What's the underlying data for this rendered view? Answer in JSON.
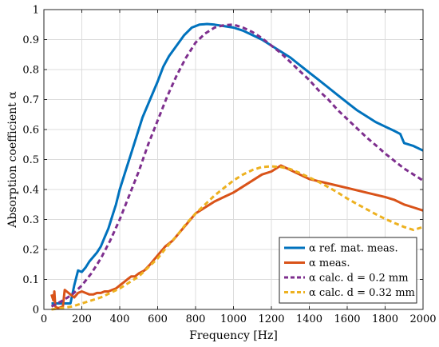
{
  "chart_data": {
    "type": "line",
    "xlabel": "Frequency [Hz]",
    "ylabel": "Absorption coefficient α",
    "xlim": [
      0,
      2000
    ],
    "ylim": [
      0,
      1
    ],
    "xticks": [
      0,
      200,
      400,
      600,
      800,
      1000,
      1200,
      1400,
      1600,
      1800,
      2000
    ],
    "yticks": [
      0,
      0.1,
      0.2,
      0.3,
      0.4,
      0.5,
      0.6,
      0.7,
      0.8,
      0.9,
      1
    ],
    "ytick_labels": [
      "0",
      "0.1",
      "0.2",
      "0.3",
      "0.4",
      "0.5",
      "0.6",
      "0.7",
      "0.8",
      "0.9",
      "1"
    ],
    "grid": true,
    "legend_position": "bottom-right",
    "series": [
      {
        "name": "α ref. mat. meas.",
        "color": "#0072BD",
        "style": "solid",
        "x": [
          40,
          60,
          80,
          100,
          120,
          140,
          160,
          180,
          200,
          220,
          240,
          260,
          280,
          300,
          320,
          340,
          360,
          380,
          400,
          430,
          460,
          490,
          520,
          560,
          600,
          630,
          660,
          700,
          740,
          780,
          820,
          860,
          900,
          950,
          1000,
          1050,
          1100,
          1150,
          1200,
          1250,
          1300,
          1350,
          1400,
          1450,
          1500,
          1550,
          1600,
          1650,
          1700,
          1750,
          1800,
          1850,
          1880,
          1900,
          1950,
          2000
        ],
        "y": [
          0.02,
          0.02,
          0.02,
          0.02,
          0.02,
          0.02,
          0.08,
          0.13,
          0.125,
          0.14,
          0.16,
          0.175,
          0.19,
          0.21,
          0.24,
          0.27,
          0.31,
          0.35,
          0.4,
          0.46,
          0.52,
          0.58,
          0.64,
          0.7,
          0.76,
          0.81,
          0.845,
          0.88,
          0.915,
          0.94,
          0.95,
          0.952,
          0.95,
          0.945,
          0.94,
          0.93,
          0.915,
          0.9,
          0.88,
          0.86,
          0.84,
          0.815,
          0.79,
          0.765,
          0.74,
          0.715,
          0.69,
          0.665,
          0.645,
          0.625,
          0.61,
          0.595,
          0.585,
          0.555,
          0.545,
          0.53
        ]
      },
      {
        "name": "α meas.",
        "color": "#D95319",
        "style": "solid",
        "x": [
          40,
          50,
          55,
          60,
          70,
          80,
          100,
          110,
          120,
          140,
          160,
          180,
          200,
          220,
          240,
          260,
          280,
          300,
          320,
          340,
          360,
          380,
          400,
          420,
          440,
          460,
          480,
          500,
          530,
          560,
          600,
          640,
          680,
          720,
          760,
          800,
          850,
          900,
          950,
          1000,
          1050,
          1100,
          1150,
          1200,
          1250,
          1300,
          1350,
          1400,
          1500,
          1600,
          1700,
          1800,
          1850,
          1900,
          1950,
          2000
        ],
        "y": [
          0.05,
          0.03,
          0.06,
          0.01,
          0.005,
          0.005,
          0.01,
          0.065,
          0.06,
          0.05,
          0.04,
          0.055,
          0.06,
          0.055,
          0.05,
          0.05,
          0.055,
          0.055,
          0.06,
          0.06,
          0.065,
          0.07,
          0.08,
          0.09,
          0.1,
          0.11,
          0.11,
          0.12,
          0.13,
          0.15,
          0.18,
          0.21,
          0.23,
          0.26,
          0.29,
          0.32,
          0.34,
          0.36,
          0.375,
          0.39,
          0.41,
          0.43,
          0.45,
          0.46,
          0.48,
          0.465,
          0.45,
          0.435,
          0.42,
          0.405,
          0.39,
          0.375,
          0.365,
          0.35,
          0.34,
          0.33
        ]
      },
      {
        "name": "α calc. d = 0.2 mm",
        "color": "#7E2F8E",
        "style": "dashed",
        "x": [
          40,
          100,
          150,
          200,
          250,
          300,
          350,
          400,
          450,
          500,
          550,
          600,
          650,
          700,
          750,
          800,
          850,
          900,
          950,
          1000,
          1050,
          1100,
          1150,
          1200,
          1250,
          1300,
          1350,
          1400,
          1450,
          1500,
          1550,
          1600,
          1650,
          1700,
          1750,
          1800,
          1850,
          1900,
          1950,
          2000
        ],
        "y": [
          0.01,
          0.03,
          0.05,
          0.08,
          0.12,
          0.17,
          0.23,
          0.3,
          0.38,
          0.46,
          0.55,
          0.63,
          0.71,
          0.78,
          0.84,
          0.89,
          0.92,
          0.94,
          0.948,
          0.95,
          0.94,
          0.925,
          0.905,
          0.88,
          0.855,
          0.825,
          0.795,
          0.765,
          0.73,
          0.7,
          0.665,
          0.635,
          0.605,
          0.575,
          0.548,
          0.52,
          0.495,
          0.47,
          0.45,
          0.43
        ]
      },
      {
        "name": "α calc. d = 0.32 mm",
        "color": "#EDB120",
        "style": "dashed",
        "x": [
          40,
          100,
          150,
          200,
          250,
          300,
          350,
          400,
          450,
          500,
          550,
          600,
          650,
          700,
          750,
          800,
          850,
          900,
          950,
          1000,
          1050,
          1100,
          1150,
          1200,
          1250,
          1300,
          1350,
          1400,
          1450,
          1500,
          1550,
          1600,
          1650,
          1700,
          1750,
          1800,
          1850,
          1900,
          1950,
          2000
        ],
        "y": [
          0.0,
          0.005,
          0.01,
          0.02,
          0.03,
          0.04,
          0.055,
          0.07,
          0.09,
          0.11,
          0.14,
          0.17,
          0.21,
          0.245,
          0.285,
          0.32,
          0.35,
          0.38,
          0.405,
          0.43,
          0.45,
          0.465,
          0.475,
          0.477,
          0.475,
          0.468,
          0.455,
          0.44,
          0.425,
          0.408,
          0.39,
          0.37,
          0.352,
          0.335,
          0.318,
          0.302,
          0.288,
          0.275,
          0.265,
          0.275
        ]
      }
    ]
  }
}
